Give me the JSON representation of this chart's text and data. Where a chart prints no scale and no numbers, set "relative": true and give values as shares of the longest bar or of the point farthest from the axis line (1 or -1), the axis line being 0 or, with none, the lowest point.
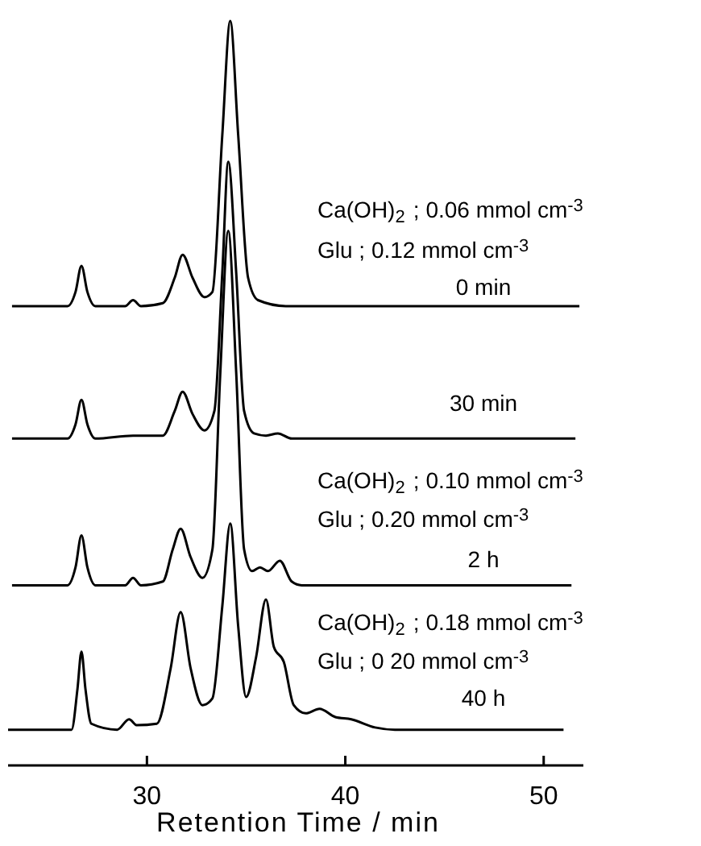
{
  "chart_data": {
    "type": "line",
    "relative": true,
    "xlim": [
      23,
      52
    ],
    "xticks": [
      30,
      40,
      50
    ],
    "xlabel": "Retention Time /  min",
    "annotations": [
      "Ca(OH)$_{2}$ ; 0.06 mmol cm$^{-3}$",
      "Glu ; 0.12 mmol cm$^{-3}$",
      "0 min",
      "30 min",
      "Ca(OH)$_{2}$ ; 0.10 mmol cm$^{-3}$",
      "Glu ; 0.20 mmol cm$^{-3}$",
      "2 h",
      "Ca(OH)$_{2}$ ; 0.18 mmol cm$^{-3}$",
      "Glu ; 0 20 mmol cm$^{-3}$",
      "40 h"
    ],
    "series": [
      {
        "color": "#000000",
        "x": [
          23.2,
          26.0,
          26.4,
          26.7,
          27.0,
          27.4,
          28.9,
          29.3,
          29.7,
          30.8,
          31.4,
          31.8,
          32.3,
          32.9,
          33.3,
          33.8,
          34.2,
          34.6,
          35.1,
          35.6,
          37,
          51.8
        ],
        "values": [
          0.617,
          0.617,
          0.636,
          0.671,
          0.636,
          0.617,
          0.617,
          0.625,
          0.617,
          0.621,
          0.655,
          0.686,
          0.655,
          0.629,
          0.636,
          0.847,
          1,
          0.847,
          0.655,
          0.625,
          0.617,
          0.617
        ]
      },
      {
        "color": "#000000",
        "x": [
          23.2,
          26.0,
          26.4,
          26.7,
          27.0,
          27.4,
          29.3,
          30.8,
          31.4,
          31.8,
          32.3,
          32.9,
          33.4,
          33.8,
          34.1,
          34.5,
          34.9,
          35.4,
          36.0,
          36.6,
          37.3,
          51.6
        ],
        "values": [
          0.439,
          0.439,
          0.458,
          0.491,
          0.458,
          0.439,
          0.443,
          0.443,
          0.476,
          0.502,
          0.472,
          0.45,
          0.476,
          0.662,
          0.811,
          0.662,
          0.476,
          0.446,
          0.443,
          0.446,
          0.439,
          0.439
        ]
      },
      {
        "color": "#000000",
        "x": [
          23.2,
          26.0,
          26.4,
          26.7,
          27.0,
          27.4,
          28.9,
          29.3,
          29.7,
          30.8,
          31.3,
          31.7,
          32.2,
          32.8,
          33.3,
          33.7,
          34.1,
          34.5,
          34.9,
          35.3,
          35.7,
          36.1,
          36.7,
          37.3,
          37.8,
          51.4
        ],
        "values": [
          0.242,
          0.242,
          0.266,
          0.309,
          0.266,
          0.242,
          0.242,
          0.252,
          0.242,
          0.247,
          0.29,
          0.318,
          0.28,
          0.252,
          0.29,
          0.528,
          0.718,
          0.528,
          0.29,
          0.261,
          0.266,
          0.261,
          0.275,
          0.247,
          0.242,
          0.242
        ]
      },
      {
        "color": "#000000",
        "x": [
          23.0,
          26.2,
          26.5,
          26.7,
          26.9,
          27.2,
          28.5,
          29.1,
          29.5,
          30.5,
          31.2,
          31.7,
          32.2,
          32.8,
          33.3,
          33.8,
          34.2,
          34.6,
          35.0,
          35.5,
          36.0,
          36.4,
          36.9,
          37.4,
          38.0,
          38.7,
          39.5,
          40.3,
          41.5,
          42.5,
          51.0
        ],
        "values": [
          0.048,
          0.048,
          0.103,
          0.153,
          0.103,
          0.056,
          0.048,
          0.062,
          0.054,
          0.056,
          0.131,
          0.206,
          0.131,
          0.081,
          0.09,
          0.214,
          0.325,
          0.187,
          0.092,
          0.145,
          0.223,
          0.159,
          0.139,
          0.081,
          0.07,
          0.076,
          0.065,
          0.062,
          0.051,
          0.048,
          0.048
        ]
      }
    ]
  }
}
